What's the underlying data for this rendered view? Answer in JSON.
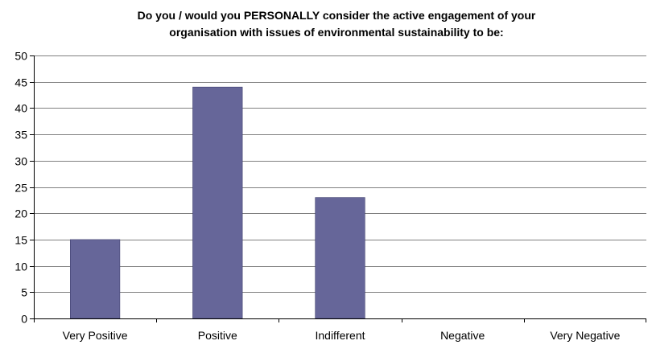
{
  "chart_data": {
    "type": "bar",
    "title_lines": [
      "Do you / would you PERSONALLY consider the active engagement of your",
      "organisation with issues of environmental sustainability to be:"
    ],
    "categories": [
      "Very Positive",
      "Positive",
      "Indifferent",
      "Negative",
      "Very Negative"
    ],
    "values": [
      15,
      44,
      23,
      0,
      0
    ],
    "ylim": [
      0,
      50
    ],
    "yticks": [
      0,
      5,
      10,
      15,
      20,
      25,
      30,
      35,
      40,
      45,
      50
    ],
    "grid": true,
    "legend": "none",
    "colors": {
      "bar": "#666699",
      "bar_edge": "#3f3f6e",
      "grid": "#808080",
      "axis": "#000000"
    }
  }
}
